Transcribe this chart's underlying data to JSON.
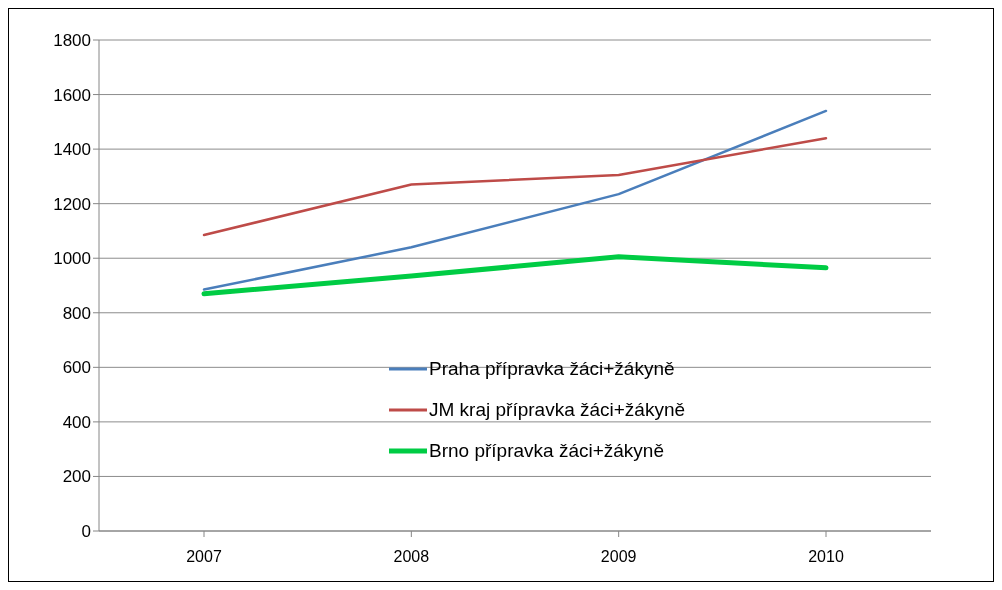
{
  "chart_data": {
    "type": "line",
    "categories": [
      "2007",
      "2008",
      "2009",
      "2010"
    ],
    "series": [
      {
        "name": "Praha přípravka žáci+žákyně",
        "color": "#4a7ebb",
        "values": [
          885,
          1040,
          1235,
          1540
        ]
      },
      {
        "name": "JM kraj přípravka žáci+žákyně",
        "color": "#be4b48",
        "values": [
          1085,
          1270,
          1305,
          1440
        ]
      },
      {
        "name": "Brno přípravka žáci+žákyně",
        "color": "#00cc44",
        "values": [
          870,
          935,
          1005,
          965
        ]
      }
    ],
    "ylim": [
      0,
      1800
    ],
    "yticks": [
      0,
      200,
      400,
      600,
      800,
      1000,
      1200,
      1400,
      1600,
      1800
    ],
    "grid": "y",
    "legend": "bottom right",
    "marker": "none",
    "line_style": "solid"
  }
}
